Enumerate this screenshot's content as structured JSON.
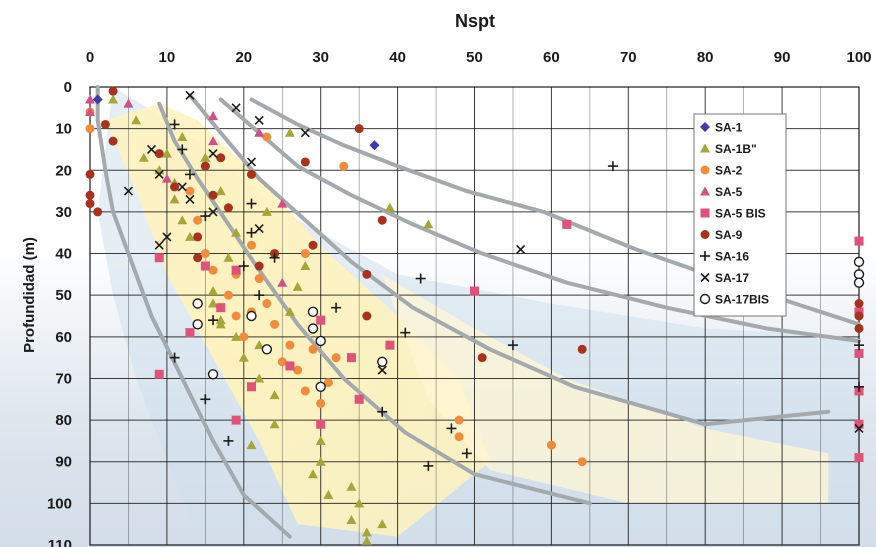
{
  "chart_data": {
    "type": "scatter",
    "title": "",
    "xlabel": "Nspt",
    "ylabel": "Profundidad (m)",
    "xlim": [
      0,
      100
    ],
    "ylim": [
      0,
      110
    ],
    "y_inverted": true,
    "x_ticks": [
      0,
      10,
      20,
      30,
      40,
      50,
      60,
      70,
      80,
      90,
      100
    ],
    "y_ticks": [
      0,
      10,
      20,
      30,
      40,
      50,
      60,
      70,
      80,
      90,
      100,
      110
    ],
    "grid": true,
    "legend_position": "top-right",
    "series": [
      {
        "name": "SA-1",
        "marker": "diamond",
        "color": "#3c3ca8",
        "points": [
          [
            1,
            3
          ],
          [
            37,
            14
          ]
        ]
      },
      {
        "name": "SA-1B\"",
        "marker": "triangle",
        "color": "#a5a53a",
        "points": [
          [
            3,
            3
          ],
          [
            6,
            8
          ],
          [
            7,
            17
          ],
          [
            9,
            20
          ],
          [
            11,
            27
          ],
          [
            12,
            32
          ],
          [
            13,
            36
          ],
          [
            16,
            49
          ],
          [
            16,
            52
          ],
          [
            18,
            41
          ],
          [
            17,
            56
          ],
          [
            17,
            57
          ],
          [
            19,
            60
          ],
          [
            20,
            65
          ],
          [
            21,
            86
          ],
          [
            22,
            70
          ],
          [
            24,
            74
          ],
          [
            24,
            81
          ],
          [
            26,
            11
          ],
          [
            27,
            48
          ],
          [
            29,
            93
          ],
          [
            30,
            85
          ],
          [
            30,
            90
          ],
          [
            31,
            98
          ],
          [
            34,
            96
          ],
          [
            34,
            104
          ],
          [
            35,
            100
          ],
          [
            36,
            107
          ],
          [
            36,
            109
          ],
          [
            38,
            105
          ],
          [
            39,
            29
          ],
          [
            44,
            33
          ],
          [
            10,
            16
          ],
          [
            11,
            23
          ],
          [
            12,
            12
          ],
          [
            15,
            17
          ],
          [
            17,
            25
          ],
          [
            19,
            35
          ],
          [
            22,
            62
          ],
          [
            26,
            54
          ],
          [
            28,
            43
          ],
          [
            23,
            30
          ]
        ]
      },
      {
        "name": "SA-2",
        "marker": "circle",
        "color": "#f08c3c",
        "points": [
          [
            0,
            6
          ],
          [
            0,
            10
          ],
          [
            13,
            25
          ],
          [
            14,
            32
          ],
          [
            15,
            40
          ],
          [
            16,
            44
          ],
          [
            18,
            50
          ],
          [
            19,
            55
          ],
          [
            20,
            60
          ],
          [
            21,
            54
          ],
          [
            21,
            38
          ],
          [
            22,
            46
          ],
          [
            23,
            52
          ],
          [
            24,
            57
          ],
          [
            25,
            66
          ],
          [
            26,
            62
          ],
          [
            27,
            68
          ],
          [
            28,
            73
          ],
          [
            29,
            63
          ],
          [
            30,
            76
          ],
          [
            31,
            71
          ],
          [
            32,
            65
          ],
          [
            33,
            19
          ],
          [
            23,
            12
          ],
          [
            48,
            80
          ],
          [
            48,
            84
          ],
          [
            60,
            86
          ],
          [
            64,
            90
          ],
          [
            28,
            40
          ],
          [
            19,
            45
          ]
        ]
      },
      {
        "name": "SA-5",
        "marker": "triangle",
        "color": "#d2508a",
        "points": [
          [
            0,
            3
          ],
          [
            0,
            6
          ],
          [
            5,
            4
          ],
          [
            10,
            22
          ],
          [
            16,
            7
          ],
          [
            16,
            13
          ],
          [
            22,
            11
          ],
          [
            25,
            28
          ],
          [
            25,
            47
          ]
        ]
      },
      {
        "name": "SA-5 BIS",
        "marker": "square",
        "color": "#e0527a",
        "points": [
          [
            9,
            69
          ],
          [
            9,
            41
          ],
          [
            13,
            59
          ],
          [
            15,
            43
          ],
          [
            17,
            53
          ],
          [
            19,
            80
          ],
          [
            19,
            44
          ],
          [
            21,
            72
          ],
          [
            26,
            67
          ],
          [
            30,
            81
          ],
          [
            30,
            56
          ],
          [
            34,
            65
          ],
          [
            35,
            75
          ],
          [
            39,
            62
          ],
          [
            50,
            49
          ],
          [
            62,
            33
          ],
          [
            100,
            37
          ],
          [
            100,
            54
          ],
          [
            100,
            64
          ],
          [
            100,
            73
          ],
          [
            100,
            81
          ],
          [
            100,
            89
          ]
        ]
      },
      {
        "name": "SA-9",
        "marker": "circle",
        "color": "#a8321e",
        "points": [
          [
            0,
            21
          ],
          [
            0,
            26
          ],
          [
            0,
            28
          ],
          [
            1,
            30
          ],
          [
            2,
            9
          ],
          [
            3,
            1
          ],
          [
            3,
            13
          ],
          [
            9,
            16
          ],
          [
            11,
            24
          ],
          [
            14,
            36
          ],
          [
            14,
            41
          ],
          [
            15,
            19
          ],
          [
            16,
            26
          ],
          [
            17,
            17
          ],
          [
            18,
            29
          ],
          [
            21,
            21
          ],
          [
            22,
            43
          ],
          [
            24,
            40
          ],
          [
            28,
            18
          ],
          [
            29,
            38
          ],
          [
            35,
            10
          ],
          [
            36,
            45
          ],
          [
            36,
            55
          ],
          [
            38,
            32
          ],
          [
            51,
            65
          ],
          [
            64,
            63
          ],
          [
            100,
            52
          ],
          [
            100,
            55
          ],
          [
            100,
            58
          ]
        ]
      },
      {
        "name": "SA-16",
        "marker": "plus",
        "color": "#1a1a1a",
        "points": [
          [
            11,
            65
          ],
          [
            11,
            9
          ],
          [
            12,
            15
          ],
          [
            13,
            21
          ],
          [
            15,
            31
          ],
          [
            15,
            75
          ],
          [
            16,
            56
          ],
          [
            18,
            85
          ],
          [
            20,
            43
          ],
          [
            21,
            28
          ],
          [
            21,
            35
          ],
          [
            22,
            50
          ],
          [
            24,
            41
          ],
          [
            32,
            53
          ],
          [
            38,
            78
          ],
          [
            41,
            59
          ],
          [
            43,
            46
          ],
          [
            44,
            91
          ],
          [
            47,
            82
          ],
          [
            49,
            88
          ],
          [
            55,
            62
          ],
          [
            68,
            19
          ],
          [
            100,
            62
          ],
          [
            100,
            72
          ]
        ]
      },
      {
        "name": "SA-17",
        "marker": "x",
        "color": "#1a1a1a",
        "points": [
          [
            13,
            2
          ],
          [
            19,
            5
          ],
          [
            22,
            8
          ],
          [
            28,
            11
          ],
          [
            5,
            25
          ],
          [
            9,
            21
          ],
          [
            8,
            15
          ],
          [
            10,
            36
          ],
          [
            13,
            27
          ],
          [
            16,
            30
          ],
          [
            16,
            16
          ],
          [
            21,
            18
          ],
          [
            22,
            34
          ],
          [
            38,
            68
          ],
          [
            56,
            39
          ],
          [
            9,
            38
          ],
          [
            12,
            24
          ],
          [
            100,
            82
          ]
        ]
      },
      {
        "name": "SA-17BIS",
        "marker": "open-circle",
        "color": "#1a1a1a",
        "points": [
          [
            14,
            52
          ],
          [
            14,
            57
          ],
          [
            16,
            69
          ],
          [
            21,
            55
          ],
          [
            23,
            63
          ],
          [
            29,
            54
          ],
          [
            29,
            58
          ],
          [
            30,
            61
          ],
          [
            30,
            72
          ],
          [
            38,
            66
          ],
          [
            100,
            42
          ],
          [
            100,
            45
          ],
          [
            100,
            47
          ]
        ]
      }
    ],
    "curves": [
      [
        [
          1,
          0
        ],
        [
          1,
          8
        ],
        [
          2,
          20
        ],
        [
          3,
          30
        ],
        [
          5,
          40
        ],
        [
          8,
          55
        ],
        [
          12,
          70
        ],
        [
          16,
          85
        ],
        [
          20,
          98
        ],
        [
          26,
          108
        ]
      ],
      [
        [
          9,
          4
        ],
        [
          11,
          13
        ],
        [
          14,
          22
        ],
        [
          18,
          33
        ],
        [
          22,
          44
        ],
        [
          27,
          57
        ],
        [
          33,
          70
        ],
        [
          41,
          83
        ],
        [
          50,
          93
        ],
        [
          65,
          100
        ]
      ],
      [
        [
          13,
          2
        ],
        [
          17,
          11
        ],
        [
          22,
          22
        ],
        [
          28,
          32
        ],
        [
          34,
          42
        ],
        [
          42,
          53
        ],
        [
          52,
          63
        ],
        [
          63,
          72
        ],
        [
          80,
          81
        ],
        [
          96,
          78
        ]
      ],
      [
        [
          17,
          3
        ],
        [
          22,
          11
        ],
        [
          27,
          19
        ],
        [
          34,
          26
        ],
        [
          42,
          33
        ],
        [
          51,
          40
        ],
        [
          62,
          47
        ],
        [
          75,
          53
        ],
        [
          88,
          58
        ],
        [
          100,
          61
        ]
      ],
      [
        [
          21,
          3
        ],
        [
          27,
          9
        ],
        [
          33,
          14
        ],
        [
          40,
          19
        ],
        [
          49,
          25
        ],
        [
          59,
          30
        ],
        [
          71,
          39
        ],
        [
          85,
          48
        ],
        [
          100,
          57
        ]
      ]
    ]
  }
}
